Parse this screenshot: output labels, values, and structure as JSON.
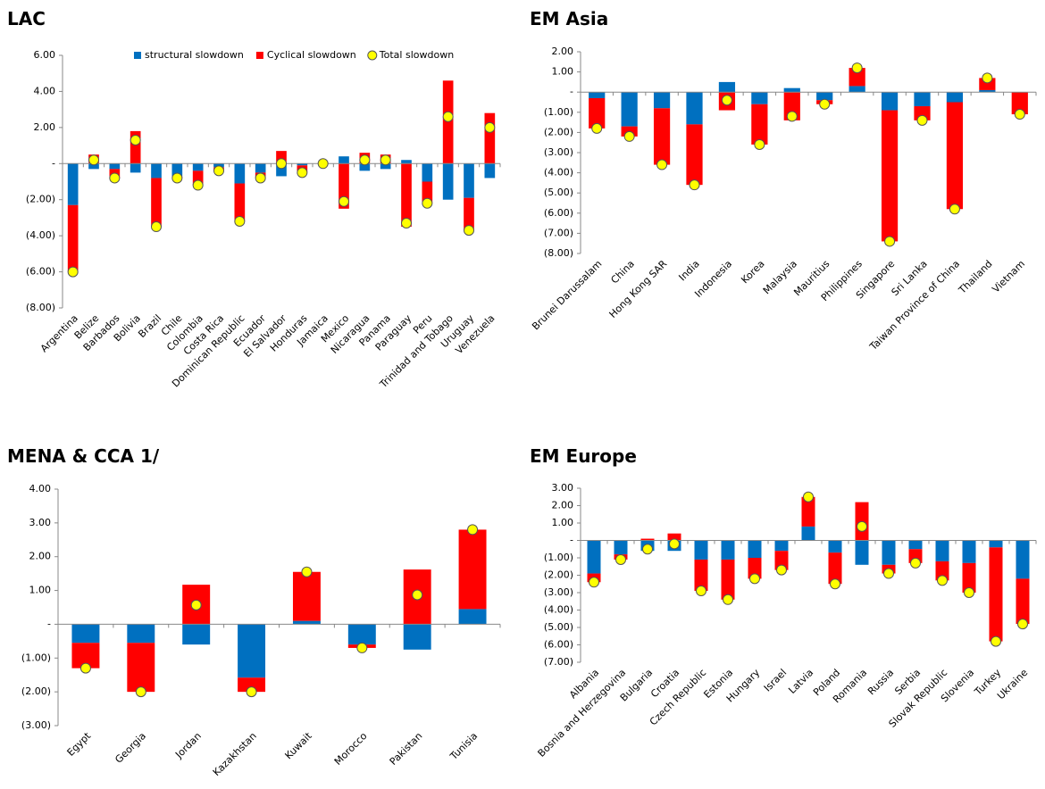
{
  "chart_data": [
    {
      "type": "bar",
      "title": "LAC",
      "stacked": true,
      "legend": "top",
      "categories": [
        "Argentina",
        "Belize",
        "Barbados",
        "Bolivia",
        "Brazil",
        "Chile",
        "Colombia",
        "Costa Rica",
        "Dominican Republic",
        "Ecuador",
        "El Salvador",
        "Honduras",
        "Jamaica",
        "Mexico",
        "Nicaragua",
        "Panama",
        "Paraguay",
        "Peru",
        "Trinidad and Tobago",
        "Uruguay",
        "Venezuela"
      ],
      "series": [
        {
          "name": "structural slowdown",
          "type": "bar",
          "color": "#0070c0",
          "values": [
            -2.3,
            -0.3,
            -0.3,
            -0.5,
            -0.8,
            -0.7,
            -0.4,
            -0.2,
            -1.1,
            -0.5,
            -0.7,
            -0.1,
            0,
            0.4,
            -0.4,
            -0.3,
            0.2,
            -1.0,
            -2.0,
            -1.9,
            -0.8
          ]
        },
        {
          "name": "Cyclical slowdown",
          "type": "bar",
          "color": "#ff0000",
          "values": [
            -3.7,
            0.5,
            -0.5,
            1.8,
            -2.7,
            -0.1,
            -0.8,
            -0.2,
            -2.1,
            -0.3,
            0.7,
            -0.4,
            0,
            -2.5,
            0.6,
            0.5,
            -3.5,
            -1.2,
            4.6,
            -1.8,
            2.8
          ]
        },
        {
          "name": "Total slowdown",
          "type": "scatter",
          "color": "#ffff00",
          "values": [
            -6.0,
            0.2,
            -0.8,
            1.3,
            -3.5,
            -0.8,
            -1.2,
            -0.4,
            -3.2,
            -0.8,
            0.0,
            -0.5,
            0.0,
            -2.1,
            0.2,
            0.2,
            -3.3,
            -2.2,
            2.6,
            -3.7,
            2.0
          ]
        }
      ],
      "ylim": [
        -8,
        6
      ],
      "yticks": [
        {
          "value": 6,
          "label": "6.00"
        },
        {
          "value": 4,
          "label": "4.00"
        },
        {
          "value": 2,
          "label": "2.00"
        },
        {
          "value": 0,
          "label": "-"
        },
        {
          "value": -2,
          "label": "(2.00)"
        },
        {
          "value": -4,
          "label": "(4.00)"
        },
        {
          "value": -6,
          "label": "(6.00)"
        },
        {
          "value": -8,
          "label": "(8.00)"
        }
      ]
    },
    {
      "type": "bar",
      "title": "EM Asia",
      "stacked": true,
      "categories": [
        "Brunei Darussalam",
        "China",
        "Hong Kong SAR",
        "India",
        "Indonesia",
        "Korea",
        "Malaysia",
        "Mauritius",
        "Philippines",
        "Singapore",
        "Sri Lanka",
        "Taiwan Province of China",
        "Thailand",
        "Vietnam"
      ],
      "series": [
        {
          "name": "structural slowdown",
          "type": "bar",
          "color": "#0070c0",
          "values": [
            -0.3,
            -1.7,
            -0.8,
            -1.6,
            0.5,
            -0.6,
            0.2,
            -0.4,
            0.3,
            -0.9,
            -0.7,
            -0.5,
            0.1,
            0
          ]
        },
        {
          "name": "Cyclical slowdown",
          "type": "bar",
          "color": "#ff0000",
          "values": [
            -1.5,
            -0.5,
            -2.8,
            -3.0,
            -0.9,
            -2.0,
            -1.4,
            -0.2,
            0.9,
            -6.5,
            -0.7,
            -5.3,
            0.6,
            -1.1
          ]
        },
        {
          "name": "Total slowdown",
          "type": "scatter",
          "color": "#ffff00",
          "values": [
            -1.8,
            -2.2,
            -3.6,
            -4.6,
            -0.4,
            -2.6,
            -1.2,
            -0.6,
            1.2,
            -7.4,
            -1.4,
            -5.8,
            0.7,
            -1.1
          ]
        }
      ],
      "ylim": [
        -8,
        2
      ],
      "yticks": [
        {
          "value": 2,
          "label": "2.00"
        },
        {
          "value": 1,
          "label": "1.00"
        },
        {
          "value": 0,
          "label": "-"
        },
        {
          "value": -1,
          "label": "(1.00)"
        },
        {
          "value": -2,
          "label": "(2.00)"
        },
        {
          "value": -3,
          "label": "(3.00)"
        },
        {
          "value": -4,
          "label": "(4.00)"
        },
        {
          "value": -5,
          "label": "(5.00)"
        },
        {
          "value": -6,
          "label": "(6.00)"
        },
        {
          "value": -7,
          "label": "(7.00)"
        },
        {
          "value": -8,
          "label": "(8.00)"
        }
      ]
    },
    {
      "type": "bar",
      "title": "MENA & CCA 1/",
      "stacked": true,
      "categories": [
        "Egypt",
        "Georgia",
        "Jordan",
        "Kazakhstan",
        "Kuwait",
        "Morocco",
        "Pakistan",
        "Tunisia"
      ],
      "series": [
        {
          "name": "structural slowdown",
          "type": "bar",
          "color": "#0070c0",
          "values": [
            -0.55,
            -0.55,
            -0.6,
            -1.58,
            0.1,
            -0.6,
            -0.75,
            0.45
          ]
        },
        {
          "name": "Cyclical slowdown",
          "type": "bar",
          "color": "#ff0000",
          "values": [
            -0.75,
            -1.45,
            1.17,
            -0.42,
            1.45,
            -0.1,
            1.62,
            2.35
          ]
        },
        {
          "name": "Total slowdown",
          "type": "scatter",
          "color": "#ffff00",
          "values": [
            -1.3,
            -2.0,
            0.57,
            -2.0,
            1.55,
            -0.7,
            0.87,
            2.8
          ]
        }
      ],
      "ylim": [
        -3,
        4
      ],
      "yticks": [
        {
          "value": 4,
          "label": "4.00"
        },
        {
          "value": 3,
          "label": "3.00"
        },
        {
          "value": 2,
          "label": "2.00"
        },
        {
          "value": 1,
          "label": "1.00"
        },
        {
          "value": 0,
          "label": "-"
        },
        {
          "value": -1,
          "label": "(1.00)"
        },
        {
          "value": -2,
          "label": "(2.00)"
        },
        {
          "value": -3,
          "label": "(3.00)"
        }
      ]
    },
    {
      "type": "bar",
      "title": "EM Europe",
      "stacked": true,
      "categories": [
        "Albania",
        "Bosnia and Herzegovina",
        "Bulgaria",
        "Croatia",
        "Czech Republic",
        "Estonia",
        "Hungary",
        "Israel",
        "Latvia",
        "Poland",
        "Romania",
        "Russia",
        "Serbia",
        "Slovak Republic",
        "Slovenia",
        "Turkey",
        "Ukraine"
      ],
      "series": [
        {
          "name": "structural slowdown",
          "type": "bar",
          "color": "#0070c0",
          "values": [
            -1.9,
            -0.8,
            -0.6,
            -0.6,
            -1.1,
            -1.1,
            -1.0,
            -0.6,
            0.8,
            -0.7,
            -1.4,
            -1.4,
            -0.5,
            -1.2,
            -1.3,
            -0.4,
            -2.2
          ]
        },
        {
          "name": "Cyclical slowdown",
          "type": "bar",
          "color": "#ff0000",
          "values": [
            -0.5,
            -0.3,
            0.1,
            0.4,
            -1.8,
            -2.3,
            -1.2,
            -1.1,
            1.7,
            -1.8,
            2.2,
            -0.5,
            -0.8,
            -1.1,
            -1.7,
            -5.4,
            -2.6
          ]
        },
        {
          "name": "Total slowdown",
          "type": "scatter",
          "color": "#ffff00",
          "values": [
            -2.4,
            -1.1,
            -0.5,
            -0.2,
            -2.9,
            -3.4,
            -2.2,
            -1.7,
            2.5,
            -2.5,
            0.8,
            -1.9,
            -1.3,
            -2.3,
            -3.0,
            -5.8,
            -4.8
          ]
        }
      ],
      "ylim": [
        -7,
        3
      ],
      "yticks": [
        {
          "value": 3,
          "label": "3.00"
        },
        {
          "value": 2,
          "label": "2.00"
        },
        {
          "value": 1,
          "label": "1.00"
        },
        {
          "value": 0,
          "label": "-"
        },
        {
          "value": -1,
          "label": "(1.00)"
        },
        {
          "value": -2,
          "label": "(2.00)"
        },
        {
          "value": -3,
          "label": "(3.00)"
        },
        {
          "value": -4,
          "label": "(4.00)"
        },
        {
          "value": -5,
          "label": "(5.00)"
        },
        {
          "value": -6,
          "label": "(6.00)"
        },
        {
          "value": -7,
          "label": "(7.00)"
        }
      ]
    }
  ]
}
